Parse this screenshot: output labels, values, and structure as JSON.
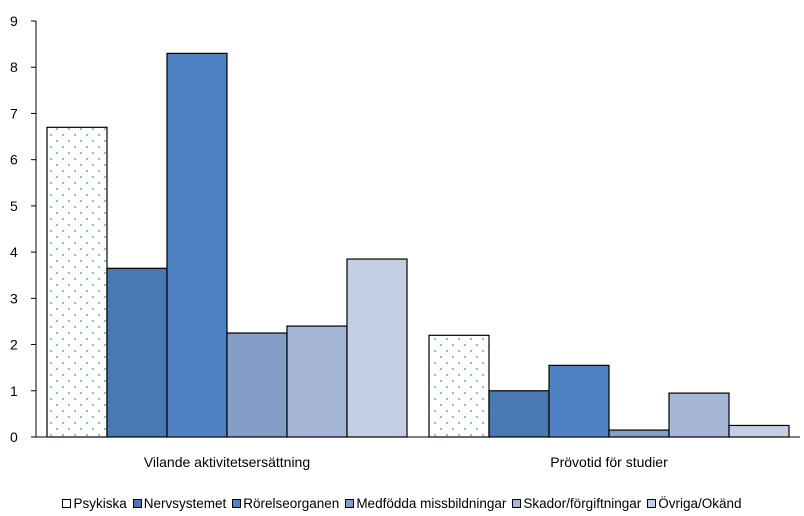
{
  "chart_data": {
    "type": "bar",
    "categories": [
      "Vilande aktivitetsersättning",
      "Prövotid för studier"
    ],
    "series": [
      {
        "name": "Psykiska",
        "values": [
          6.7,
          2.2
        ],
        "color": "#ffffff",
        "pattern": "dots"
      },
      {
        "name": "Nervsystemet",
        "values": [
          3.65,
          1.0
        ],
        "color": "#4a78b0"
      },
      {
        "name": "Rörelseorganen",
        "values": [
          8.3,
          1.55
        ],
        "color": "#4f82c3"
      },
      {
        "name": "Medfödda missbildningar",
        "values": [
          2.25,
          0.15
        ],
        "color": "#859ec8"
      },
      {
        "name": "Skador/förgiftningar",
        "values": [
          2.4,
          0.95
        ],
        "color": "#a6b6d6"
      },
      {
        "name": "Övriga/Okänd",
        "values": [
          3.85,
          0.25
        ],
        "color": "#c4cfe3"
      }
    ],
    "ylim": [
      0,
      9
    ],
    "yticks": [
      "0",
      "1",
      "2",
      "3",
      "4",
      "5",
      "6",
      "7",
      "8",
      "9"
    ],
    "grid": false,
    "legend_position": "bottom"
  }
}
